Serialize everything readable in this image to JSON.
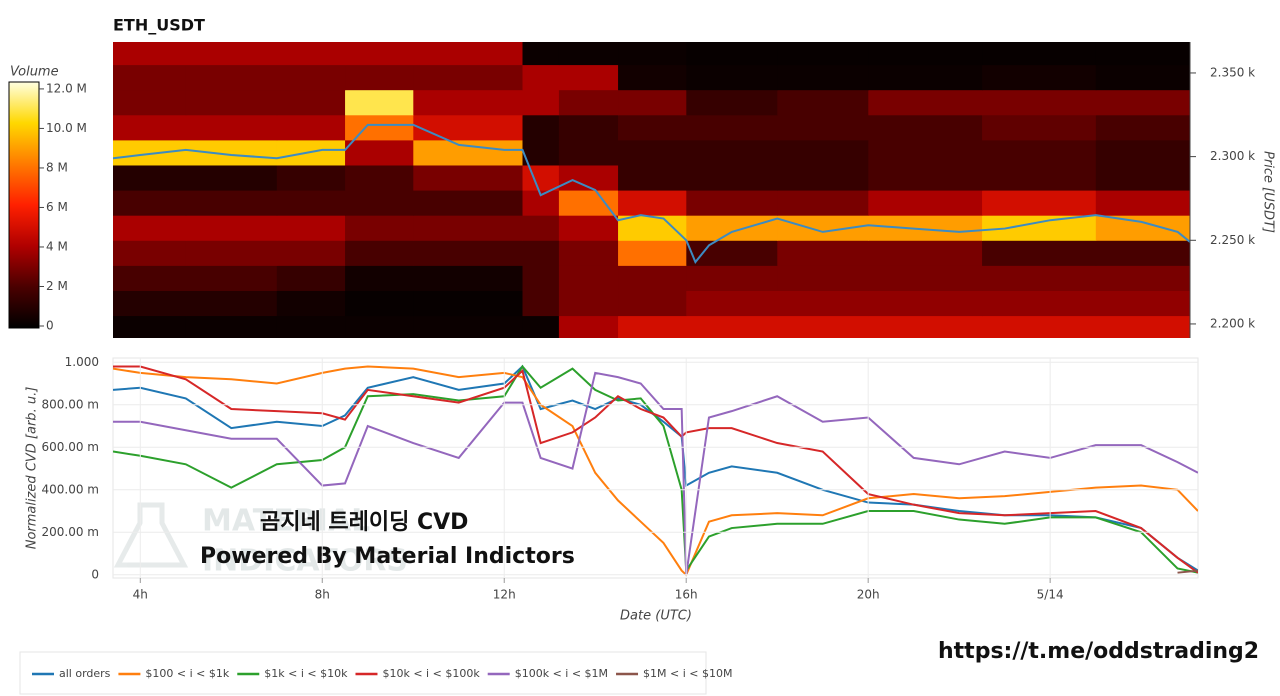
{
  "chart_data": [
    {
      "type": "heatmap",
      "title": "ETH_USDT",
      "colorbar_title": "Volume",
      "y_label": "Price [USDT]",
      "xlim": [
        3.4,
        27.07
      ],
      "ylim": [
        2191.6,
        2368.5
      ],
      "yticks": [
        {
          "value": 2200,
          "label": "2.200 k"
        },
        {
          "value": 2250,
          "label": "2.250 k"
        },
        {
          "value": 2300,
          "label": "2.300 k"
        },
        {
          "value": 2350,
          "label": "2.350 k"
        }
      ],
      "zlim": [
        0,
        12350000
      ],
      "zticks": [
        0,
        {
          "value": 2000000,
          "label": "2 M"
        },
        {
          "value": 4000000,
          "label": "4 M"
        },
        {
          "value": 6000000,
          "label": "6 M"
        },
        {
          "value": 8000000,
          "label": "8 M"
        },
        {
          "value": 10000000,
          "label": "10.0 M"
        },
        {
          "value": 12000000,
          "label": "12.0 M"
        }
      ],
      "colorscale": [
        "#000000",
        "#4a0000",
        "#b00000",
        "#ff2000",
        "#ff7a00",
        "#ffd800",
        "#ffffe0"
      ],
      "time_bins": [
        3.4,
        5,
        7,
        8.5,
        10,
        12.4,
        13.2,
        14.5,
        16,
        18,
        20,
        22.5,
        25,
        27.07
      ],
      "price_bins": [
        2190,
        2205,
        2220,
        2235,
        2250,
        2265,
        2280,
        2295,
        2310,
        2325,
        2340,
        2355,
        2370
      ],
      "volumes": [
        [
          300000.0,
          300000.0,
          300000.0,
          300000.0,
          300000.0,
          300000.0,
          4000000.0,
          5000000.0,
          5000000.0,
          5000000.0,
          5000000.0,
          5000000.0,
          5000000.0
        ],
        [
          1000000.0,
          1000000.0,
          500000.0,
          200000.0,
          200000.0,
          2000000.0,
          3000000.0,
          3000000.0,
          3500000.0,
          3500000.0,
          3500000.0,
          3500000.0,
          3500000.0
        ],
        [
          2000000.0,
          2000000.0,
          1500000.0,
          500000.0,
          500000.0,
          2000000.0,
          3000000.0,
          3000000.0,
          3000000.0,
          3000000.0,
          3000000.0,
          3000000.0,
          3000000.0
        ],
        [
          3000000.0,
          3000000.0,
          3000000.0,
          2000000.0,
          2000000.0,
          2000000.0,
          3000000.0,
          8000000.0,
          2000000.0,
          3000000.0,
          3000000.0,
          2000000.0,
          2000000.0
        ],
        [
          4000000.0,
          4000000.0,
          4000000.0,
          3000000.0,
          3000000.0,
          3000000.0,
          4000000.0,
          10000000.0,
          9000000.0,
          9000000.0,
          9000000.0,
          10000000.0,
          9000000.0
        ],
        [
          2000000.0,
          2000000.0,
          2000000.0,
          2000000.0,
          2000000.0,
          4000000.0,
          8000000.0,
          5000000.0,
          3000000.0,
          3000000.0,
          4000000.0,
          5000000.0,
          4000000.0
        ],
        [
          1000000.0,
          1000000.0,
          1500000.0,
          2000000.0,
          3000000.0,
          5000000.0,
          4000000.0,
          1500000.0,
          1500000.0,
          1500000.0,
          2000000.0,
          2000000.0,
          1500000.0
        ],
        [
          10000000.0,
          10000000.0,
          10000000.0,
          4000000.0,
          9000000.0,
          1000000.0,
          1500000.0,
          1500000.0,
          1500000.0,
          1500000.0,
          2000000.0,
          2000000.0,
          1500000.0
        ],
        [
          4000000.0,
          4000000.0,
          4000000.0,
          8000000.0,
          5000000.0,
          1000000.0,
          1500000.0,
          2000000.0,
          2000000.0,
          2000000.0,
          2000000.0,
          2500000.0,
          2000000.0
        ],
        [
          3000000.0,
          3000000.0,
          3000000.0,
          11000000.0,
          4000000.0,
          4000000.0,
          3000000.0,
          3000000.0,
          1500000.0,
          2000000.0,
          3000000.0,
          3000000.0,
          3000000.0
        ],
        [
          3000000.0,
          3000000.0,
          3000000.0,
          3000000.0,
          3000000.0,
          4000000.0,
          4000000.0,
          500000.0,
          300000.0,
          300000.0,
          300000.0,
          500000.0,
          300000.0
        ],
        [
          4000000.0,
          4000000.0,
          4000000.0,
          4000000.0,
          4000000.0,
          300000.0,
          300000.0,
          300000.0,
          200000.0,
          200000.0,
          200000.0,
          200000.0,
          200000.0
        ]
      ],
      "price_line": {
        "color": "#3c8bc2",
        "x": [
          3.4,
          4,
          5,
          6,
          7,
          8,
          8.5,
          9,
          10,
          11,
          12,
          12.4,
          12.8,
          13.5,
          14,
          14.5,
          15,
          15.5,
          16,
          16.2,
          16.5,
          17,
          18,
          19,
          20,
          21,
          22,
          23,
          24,
          25,
          26,
          26.8,
          27.07
        ],
        "values": [
          2299,
          2301,
          2304,
          2301,
          2299,
          2304,
          2304,
          2319,
          2319,
          2307,
          2304,
          2304,
          2277,
          2286,
          2280,
          2262,
          2265,
          2263,
          2250,
          2237,
          2247,
          2255,
          2263,
          2255,
          2259,
          2257,
          2255,
          2257,
          2262,
          2265,
          2261,
          2255,
          2249
        ]
      }
    },
    {
      "type": "line",
      "x_label": "Date (UTC)",
      "y_label": "Normalized CVD [arb. u.]",
      "xlim": [
        3.4,
        27.25
      ],
      "ylim": [
        -0.015,
        1.02
      ],
      "xticks": [
        {
          "value": 4,
          "label": "4h"
        },
        {
          "value": 8,
          "label": "8h"
        },
        {
          "value": 12,
          "label": "12h"
        },
        {
          "value": 16,
          "label": "16h"
        },
        {
          "value": 20,
          "label": "20h"
        },
        {
          "value": 24,
          "label": "5/14"
        }
      ],
      "yticks": [
        {
          "value": 0,
          "label": "0"
        },
        {
          "value": 0.2,
          "label": "200.00 m"
        },
        {
          "value": 0.4,
          "label": "400.00 m"
        },
        {
          "value": 0.6,
          "label": "600.00 m"
        },
        {
          "value": 0.8,
          "label": "800.00 m"
        },
        {
          "value": 1,
          "label": "1.000"
        }
      ],
      "grid": true,
      "annotations": [
        "곰지네 트레이딩 CVD",
        "Powered By Material Indictors"
      ],
      "watermark": [
        "MATERIAL",
        "INDICATORS"
      ],
      "x": [
        3.4,
        4,
        5,
        6,
        7,
        8,
        8.5,
        9,
        10,
        11,
        12,
        12.4,
        12.8,
        13.5,
        14,
        14.5,
        15,
        15.5,
        15.9,
        16,
        16.5,
        17,
        18,
        19,
        20,
        21,
        22,
        23,
        24,
        25,
        26,
        26.8,
        27.25
      ],
      "series": [
        {
          "name": "all orders",
          "color": "#1f77b4",
          "values": [
            0.87,
            0.88,
            0.83,
            0.69,
            0.72,
            0.7,
            0.75,
            0.88,
            0.93,
            0.87,
            0.9,
            0.98,
            0.78,
            0.82,
            0.78,
            0.83,
            0.8,
            0.72,
            0.65,
            0.42,
            0.48,
            0.51,
            0.48,
            0.4,
            0.34,
            0.33,
            0.3,
            0.28,
            0.28,
            0.27,
            0.22,
            0.08,
            0.02
          ]
        },
        {
          "name": "$100 < i < $1k",
          "color": "#ff7f0e",
          "values": [
            0.97,
            0.95,
            0.93,
            0.92,
            0.9,
            0.95,
            0.97,
            0.98,
            0.97,
            0.93,
            0.95,
            0.93,
            0.8,
            0.7,
            0.48,
            0.35,
            0.25,
            0.15,
            0.02,
            0,
            0.25,
            0.28,
            0.29,
            0.28,
            0.36,
            0.38,
            0.36,
            0.37,
            0.39,
            0.41,
            0.42,
            0.4,
            0.3
          ]
        },
        {
          "name": "$1k < i < $10k",
          "color": "#2ca02c",
          "values": [
            0.58,
            0.56,
            0.52,
            0.41,
            0.52,
            0.54,
            0.6,
            0.84,
            0.85,
            0.82,
            0.84,
            0.98,
            0.88,
            0.97,
            0.87,
            0.82,
            0.83,
            0.7,
            0.4,
            0.02,
            0.18,
            0.22,
            0.24,
            0.24,
            0.3,
            0.3,
            0.26,
            0.24,
            0.27,
            0.27,
            0.2,
            0.03,
            0.01
          ]
        },
        {
          "name": "$10k < i < $100k",
          "color": "#d62728",
          "values": [
            0.98,
            0.98,
            0.92,
            0.78,
            0.77,
            0.76,
            0.73,
            0.87,
            0.84,
            0.81,
            0.88,
            0.96,
            0.62,
            0.67,
            0.74,
            0.84,
            0.78,
            0.74,
            0.65,
            0.67,
            0.69,
            0.69,
            0.62,
            0.58,
            0.38,
            0.33,
            0.29,
            0.28,
            0.29,
            0.3,
            0.22,
            0.08,
            0.01
          ]
        },
        {
          "name": "$100k < i < $1M",
          "color": "#9467bd",
          "values": [
            0.72,
            0.72,
            0.68,
            0.64,
            0.64,
            0.42,
            0.43,
            0.7,
            0.62,
            0.55,
            0.81,
            0.81,
            0.55,
            0.5,
            0.95,
            0.93,
            0.9,
            0.78,
            0.78,
            0,
            0.74,
            0.77,
            0.84,
            0.72,
            0.74,
            0.55,
            0.52,
            0.58,
            0.55,
            0.61,
            0.61,
            0.53,
            0.48
          ]
        },
        {
          "name": "$1M < i < $10M",
          "color": "#8c564b",
          "values": [
            null,
            null,
            null,
            null,
            null,
            null,
            null,
            null,
            null,
            null,
            null,
            null,
            null,
            null,
            null,
            null,
            null,
            null,
            null,
            null,
            null,
            null,
            null,
            null,
            null,
            null,
            null,
            null,
            null,
            null,
            null,
            0.01,
            0.02
          ]
        }
      ]
    }
  ],
  "link": "https://t.me/oddstrading2"
}
